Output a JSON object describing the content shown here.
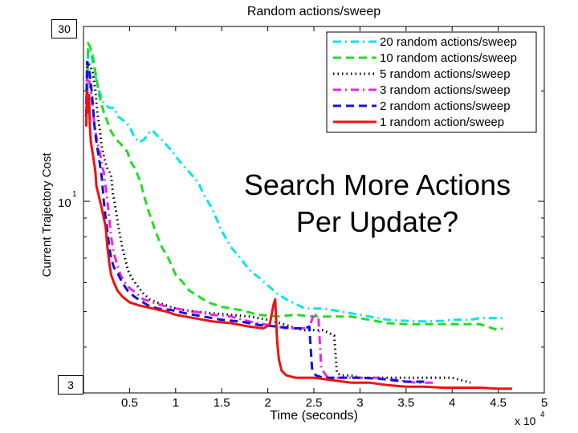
{
  "chart_data": {
    "type": "line",
    "title": "Random actions/sweep",
    "xlabel": "Time (seconds)",
    "ylabel": "Current Trajectory Cost",
    "x_multiplier_label": "x 10",
    "x_multiplier_exp": "4",
    "x_ticks": [
      0.5,
      1,
      1.5,
      2,
      2.5,
      3,
      3.5,
      4,
      4.5,
      5
    ],
    "xlim": [
      0,
      5
    ],
    "y_scale": "log",
    "ylim": [
      3,
      30
    ],
    "y_tick_base": "10",
    "y_tick_exp": "1",
    "grid": false,
    "legend_position": "top-right",
    "series": [
      {
        "name": "20 random actions/sweep",
        "color": "#00e5ee",
        "dash": "dashdot",
        "points": [
          [
            0.04,
            17.5
          ],
          [
            0.05,
            26
          ],
          [
            0.08,
            25.5
          ],
          [
            0.1,
            24
          ],
          [
            0.13,
            22
          ],
          [
            0.17,
            20
          ],
          [
            0.22,
            18.5
          ],
          [
            0.28,
            18
          ],
          [
            0.33,
            18
          ],
          [
            0.38,
            17
          ],
          [
            0.45,
            16.5
          ],
          [
            0.5,
            16
          ],
          [
            0.55,
            15
          ],
          [
            0.6,
            14.5
          ],
          [
            0.65,
            14.7
          ],
          [
            0.68,
            15
          ],
          [
            0.72,
            15.5
          ],
          [
            0.75,
            15.6
          ],
          [
            0.78,
            15.3
          ],
          [
            0.85,
            14.7
          ],
          [
            0.95,
            13.8
          ],
          [
            1.05,
            12.8
          ],
          [
            1.15,
            12
          ],
          [
            1.25,
            11.2
          ],
          [
            1.3,
            10.5
          ],
          [
            1.4,
            9.5
          ],
          [
            1.5,
            8.3
          ],
          [
            1.6,
            7.5
          ],
          [
            1.7,
            7
          ],
          [
            1.8,
            6.5
          ],
          [
            1.9,
            6.2
          ],
          [
            2.0,
            5.9
          ],
          [
            2.1,
            5.6
          ],
          [
            2.2,
            5.4
          ],
          [
            2.3,
            5.25
          ],
          [
            2.4,
            5.1
          ],
          [
            2.5,
            5.1
          ],
          [
            2.6,
            5.1
          ],
          [
            2.7,
            5.05
          ],
          [
            2.9,
            4.95
          ],
          [
            3.1,
            4.85
          ],
          [
            3.3,
            4.75
          ],
          [
            3.5,
            4.72
          ],
          [
            3.7,
            4.7
          ],
          [
            3.9,
            4.72
          ],
          [
            4.0,
            4.75
          ],
          [
            4.2,
            4.75
          ],
          [
            4.3,
            4.8
          ],
          [
            4.4,
            4.8
          ],
          [
            4.55,
            4.8
          ]
        ]
      },
      {
        "name": "10 random actions/sweep",
        "color": "#22dd22",
        "dash": "dash",
        "points": [
          [
            0.04,
            18
          ],
          [
            0.05,
            27
          ],
          [
            0.07,
            26.5
          ],
          [
            0.1,
            25
          ],
          [
            0.13,
            22.5
          ],
          [
            0.17,
            19.5
          ],
          [
            0.22,
            17.5
          ],
          [
            0.26,
            16.5
          ],
          [
            0.3,
            15.5
          ],
          [
            0.35,
            14.8
          ],
          [
            0.42,
            14.2
          ],
          [
            0.48,
            13.6
          ],
          [
            0.5,
            13
          ],
          [
            0.55,
            12.4
          ],
          [
            0.62,
            11.3
          ],
          [
            0.65,
            10.5
          ],
          [
            0.7,
            9.5
          ],
          [
            0.78,
            8.3
          ],
          [
            0.85,
            7.5
          ],
          [
            0.92,
            7
          ],
          [
            1.0,
            6.3
          ],
          [
            1.08,
            6
          ],
          [
            1.15,
            5.7
          ],
          [
            1.25,
            5.5
          ],
          [
            1.35,
            5.3
          ],
          [
            1.5,
            5.15
          ],
          [
            1.7,
            5.05
          ],
          [
            1.9,
            4.9
          ],
          [
            2.1,
            4.85
          ],
          [
            2.3,
            4.9
          ],
          [
            2.5,
            4.85
          ],
          [
            2.7,
            4.85
          ],
          [
            2.9,
            4.85
          ],
          [
            3.1,
            4.75
          ],
          [
            3.3,
            4.65
          ],
          [
            3.5,
            4.62
          ],
          [
            3.7,
            4.62
          ],
          [
            3.9,
            4.62
          ],
          [
            4.1,
            4.62
          ],
          [
            4.3,
            4.62
          ],
          [
            4.5,
            4.45
          ],
          [
            4.55,
            4.5
          ]
        ]
      },
      {
        "name": "5 random actions/sweep",
        "color": "#000000",
        "dash": "dot",
        "points": [
          [
            0.03,
            18
          ],
          [
            0.04,
            24
          ],
          [
            0.07,
            23.5
          ],
          [
            0.1,
            22.5
          ],
          [
            0.13,
            20
          ],
          [
            0.15,
            17.5
          ],
          [
            0.18,
            15.5
          ],
          [
            0.2,
            14
          ],
          [
            0.23,
            13
          ],
          [
            0.26,
            12.3
          ],
          [
            0.3,
            11.8
          ],
          [
            0.32,
            10.5
          ],
          [
            0.35,
            9.5
          ],
          [
            0.38,
            8.5
          ],
          [
            0.42,
            7.5
          ],
          [
            0.45,
            7
          ],
          [
            0.48,
            6.5
          ],
          [
            0.52,
            6.2
          ],
          [
            0.58,
            5.9
          ],
          [
            0.65,
            5.6
          ],
          [
            0.72,
            5.4
          ],
          [
            0.8,
            5.3
          ],
          [
            0.9,
            5.2
          ],
          [
            1.0,
            5.1
          ],
          [
            1.2,
            5.0
          ],
          [
            1.4,
            4.95
          ],
          [
            1.6,
            4.9
          ],
          [
            1.8,
            4.85
          ],
          [
            2.0,
            4.75
          ],
          [
            2.2,
            4.6
          ],
          [
            2.3,
            4.5
          ],
          [
            2.4,
            4.45
          ],
          [
            2.6,
            4.45
          ],
          [
            2.72,
            4.3
          ],
          [
            2.75,
            3.4
          ],
          [
            2.8,
            3.35
          ],
          [
            2.9,
            3.35
          ],
          [
            3.0,
            3.3
          ],
          [
            3.2,
            3.3
          ],
          [
            3.5,
            3.3
          ],
          [
            3.8,
            3.3
          ],
          [
            4.0,
            3.3
          ],
          [
            4.2,
            3.2
          ]
        ]
      },
      {
        "name": "3 random actions/sweep",
        "color": "#ee22ee",
        "dash": "dashdot",
        "points": [
          [
            0.03,
            17
          ],
          [
            0.04,
            22.5
          ],
          [
            0.06,
            21.5
          ],
          [
            0.08,
            20
          ],
          [
            0.1,
            18
          ],
          [
            0.12,
            16
          ],
          [
            0.15,
            14.5
          ],
          [
            0.18,
            13.5
          ],
          [
            0.2,
            12.5
          ],
          [
            0.22,
            12
          ],
          [
            0.24,
            11
          ],
          [
            0.26,
            10
          ],
          [
            0.28,
            9
          ],
          [
            0.3,
            8
          ],
          [
            0.33,
            7.2
          ],
          [
            0.36,
            6.8
          ],
          [
            0.4,
            6.3
          ],
          [
            0.45,
            6
          ],
          [
            0.5,
            5.8
          ],
          [
            0.58,
            5.6
          ],
          [
            0.65,
            5.4
          ],
          [
            0.75,
            5.3
          ],
          [
            0.85,
            5.2
          ],
          [
            1.0,
            5.1
          ],
          [
            1.2,
            5.0
          ],
          [
            1.4,
            4.9
          ],
          [
            1.6,
            4.85
          ],
          [
            1.8,
            4.7
          ],
          [
            2.0,
            4.6
          ],
          [
            2.2,
            4.5
          ],
          [
            2.35,
            4.5
          ],
          [
            2.45,
            4.5
          ],
          [
            2.5,
            4.95
          ],
          [
            2.55,
            4.8
          ],
          [
            2.58,
            3.5
          ],
          [
            2.65,
            3.3
          ],
          [
            2.8,
            3.3
          ],
          [
            3.0,
            3.3
          ],
          [
            3.2,
            3.3
          ],
          [
            3.4,
            3.25
          ],
          [
            3.6,
            3.2
          ],
          [
            3.8,
            3.2
          ]
        ]
      },
      {
        "name": "2 random actions/sweep",
        "color": "#1111dd",
        "dash": "dash",
        "points": [
          [
            0.03,
            17
          ],
          [
            0.04,
            24
          ],
          [
            0.06,
            23
          ],
          [
            0.08,
            21
          ],
          [
            0.1,
            18.5
          ],
          [
            0.12,
            16
          ],
          [
            0.14,
            14.5
          ],
          [
            0.16,
            13.5
          ],
          [
            0.18,
            12.5
          ],
          [
            0.2,
            11.5
          ],
          [
            0.22,
            10
          ],
          [
            0.24,
            9
          ],
          [
            0.26,
            8.3
          ],
          [
            0.28,
            7.5
          ],
          [
            0.3,
            7
          ],
          [
            0.33,
            6.6
          ],
          [
            0.38,
            6.3
          ],
          [
            0.42,
            6
          ],
          [
            0.48,
            5.7
          ],
          [
            0.55,
            5.5
          ],
          [
            0.62,
            5.35
          ],
          [
            0.7,
            5.2
          ],
          [
            0.8,
            5.1
          ],
          [
            0.95,
            5.05
          ],
          [
            1.1,
            4.95
          ],
          [
            1.3,
            4.85
          ],
          [
            1.5,
            4.75
          ],
          [
            1.7,
            4.7
          ],
          [
            1.9,
            4.6
          ],
          [
            2.1,
            4.55
          ],
          [
            2.3,
            4.5
          ],
          [
            2.4,
            4.5
          ],
          [
            2.45,
            4.55
          ],
          [
            2.48,
            3.5
          ],
          [
            2.52,
            3.35
          ],
          [
            2.6,
            3.3
          ],
          [
            2.8,
            3.3
          ],
          [
            3.0,
            3.3
          ],
          [
            3.2,
            3.28
          ],
          [
            3.5,
            3.22
          ],
          [
            3.7,
            3.22
          ]
        ]
      },
      {
        "name": "1 random action/sweep",
        "color": "#ee1111",
        "dash": "solid",
        "points": [
          [
            0.03,
            16
          ],
          [
            0.04,
            20
          ],
          [
            0.05,
            17.5
          ],
          [
            0.06,
            19.5
          ],
          [
            0.07,
            16
          ],
          [
            0.08,
            14.5
          ],
          [
            0.1,
            13.5
          ],
          [
            0.12,
            12.5
          ],
          [
            0.13,
            12
          ],
          [
            0.14,
            11
          ],
          [
            0.16,
            10.5
          ],
          [
            0.18,
            10
          ],
          [
            0.2,
            9.5
          ],
          [
            0.22,
            9
          ],
          [
            0.24,
            8.5
          ],
          [
            0.26,
            7.5
          ],
          [
            0.28,
            6.8
          ],
          [
            0.3,
            6.3
          ],
          [
            0.33,
            6
          ],
          [
            0.37,
            5.7
          ],
          [
            0.42,
            5.5
          ],
          [
            0.5,
            5.3
          ],
          [
            0.6,
            5.2
          ],
          [
            0.75,
            5.1
          ],
          [
            0.9,
            5.0
          ],
          [
            1.0,
            4.9
          ],
          [
            1.2,
            4.8
          ],
          [
            1.4,
            4.7
          ],
          [
            1.6,
            4.65
          ],
          [
            1.8,
            4.55
          ],
          [
            1.95,
            4.5
          ],
          [
            2.02,
            4.6
          ],
          [
            2.06,
            5.2
          ],
          [
            2.08,
            5.4
          ],
          [
            2.1,
            4.2
          ],
          [
            2.12,
            3.7
          ],
          [
            2.15,
            3.45
          ],
          [
            2.2,
            3.35
          ],
          [
            2.3,
            3.3
          ],
          [
            2.5,
            3.3
          ],
          [
            2.7,
            3.25
          ],
          [
            2.9,
            3.2
          ],
          [
            3.1,
            3.2
          ],
          [
            3.3,
            3.15
          ],
          [
            3.5,
            3.12
          ],
          [
            3.7,
            3.12
          ],
          [
            3.9,
            3.1
          ],
          [
            4.1,
            3.1
          ],
          [
            4.3,
            3.1
          ],
          [
            4.5,
            3.08
          ],
          [
            4.65,
            3.08
          ]
        ]
      }
    ]
  },
  "overlay": {
    "line1": "Search More Actions",
    "line2": "Per Update?"
  },
  "box_labels": {
    "top": "30",
    "bottom": "3"
  }
}
